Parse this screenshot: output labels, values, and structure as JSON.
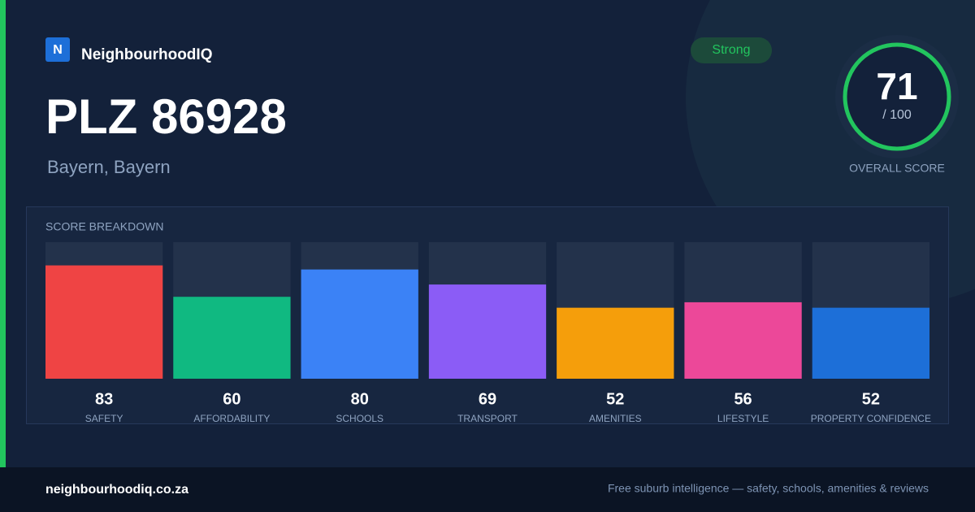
{
  "header": {
    "logo_letter": "N",
    "brand": "NeighbourhoodIQ",
    "badge": "Strong",
    "title": "PLZ 86928",
    "subtitle": "Bayern, Bayern"
  },
  "score": {
    "value": 71,
    "scale": "/ 100",
    "label": "OVERALL SCORE"
  },
  "chart_data": {
    "type": "bar",
    "title": "SCORE BREAKDOWN",
    "categories": [
      "SAFETY",
      "AFFORDABILITY",
      "SCHOOLS",
      "TRANSPORT",
      "AMENITIES",
      "LIFESTYLE",
      "PROPERTY CONFIDENCE"
    ],
    "values": [
      83,
      60,
      80,
      69,
      52,
      56,
      52
    ],
    "colors": [
      "#ef4444",
      "#10b981",
      "#3b82f6",
      "#8b5cf6",
      "#f59e0b",
      "#ec4899",
      "#1d6fd8"
    ],
    "ylim": [
      0,
      100
    ]
  },
  "footer": {
    "site": "neighbourhoodiq.co.za",
    "tagline": "Free suburb intelligence — safety, schools, amenities & reviews"
  }
}
